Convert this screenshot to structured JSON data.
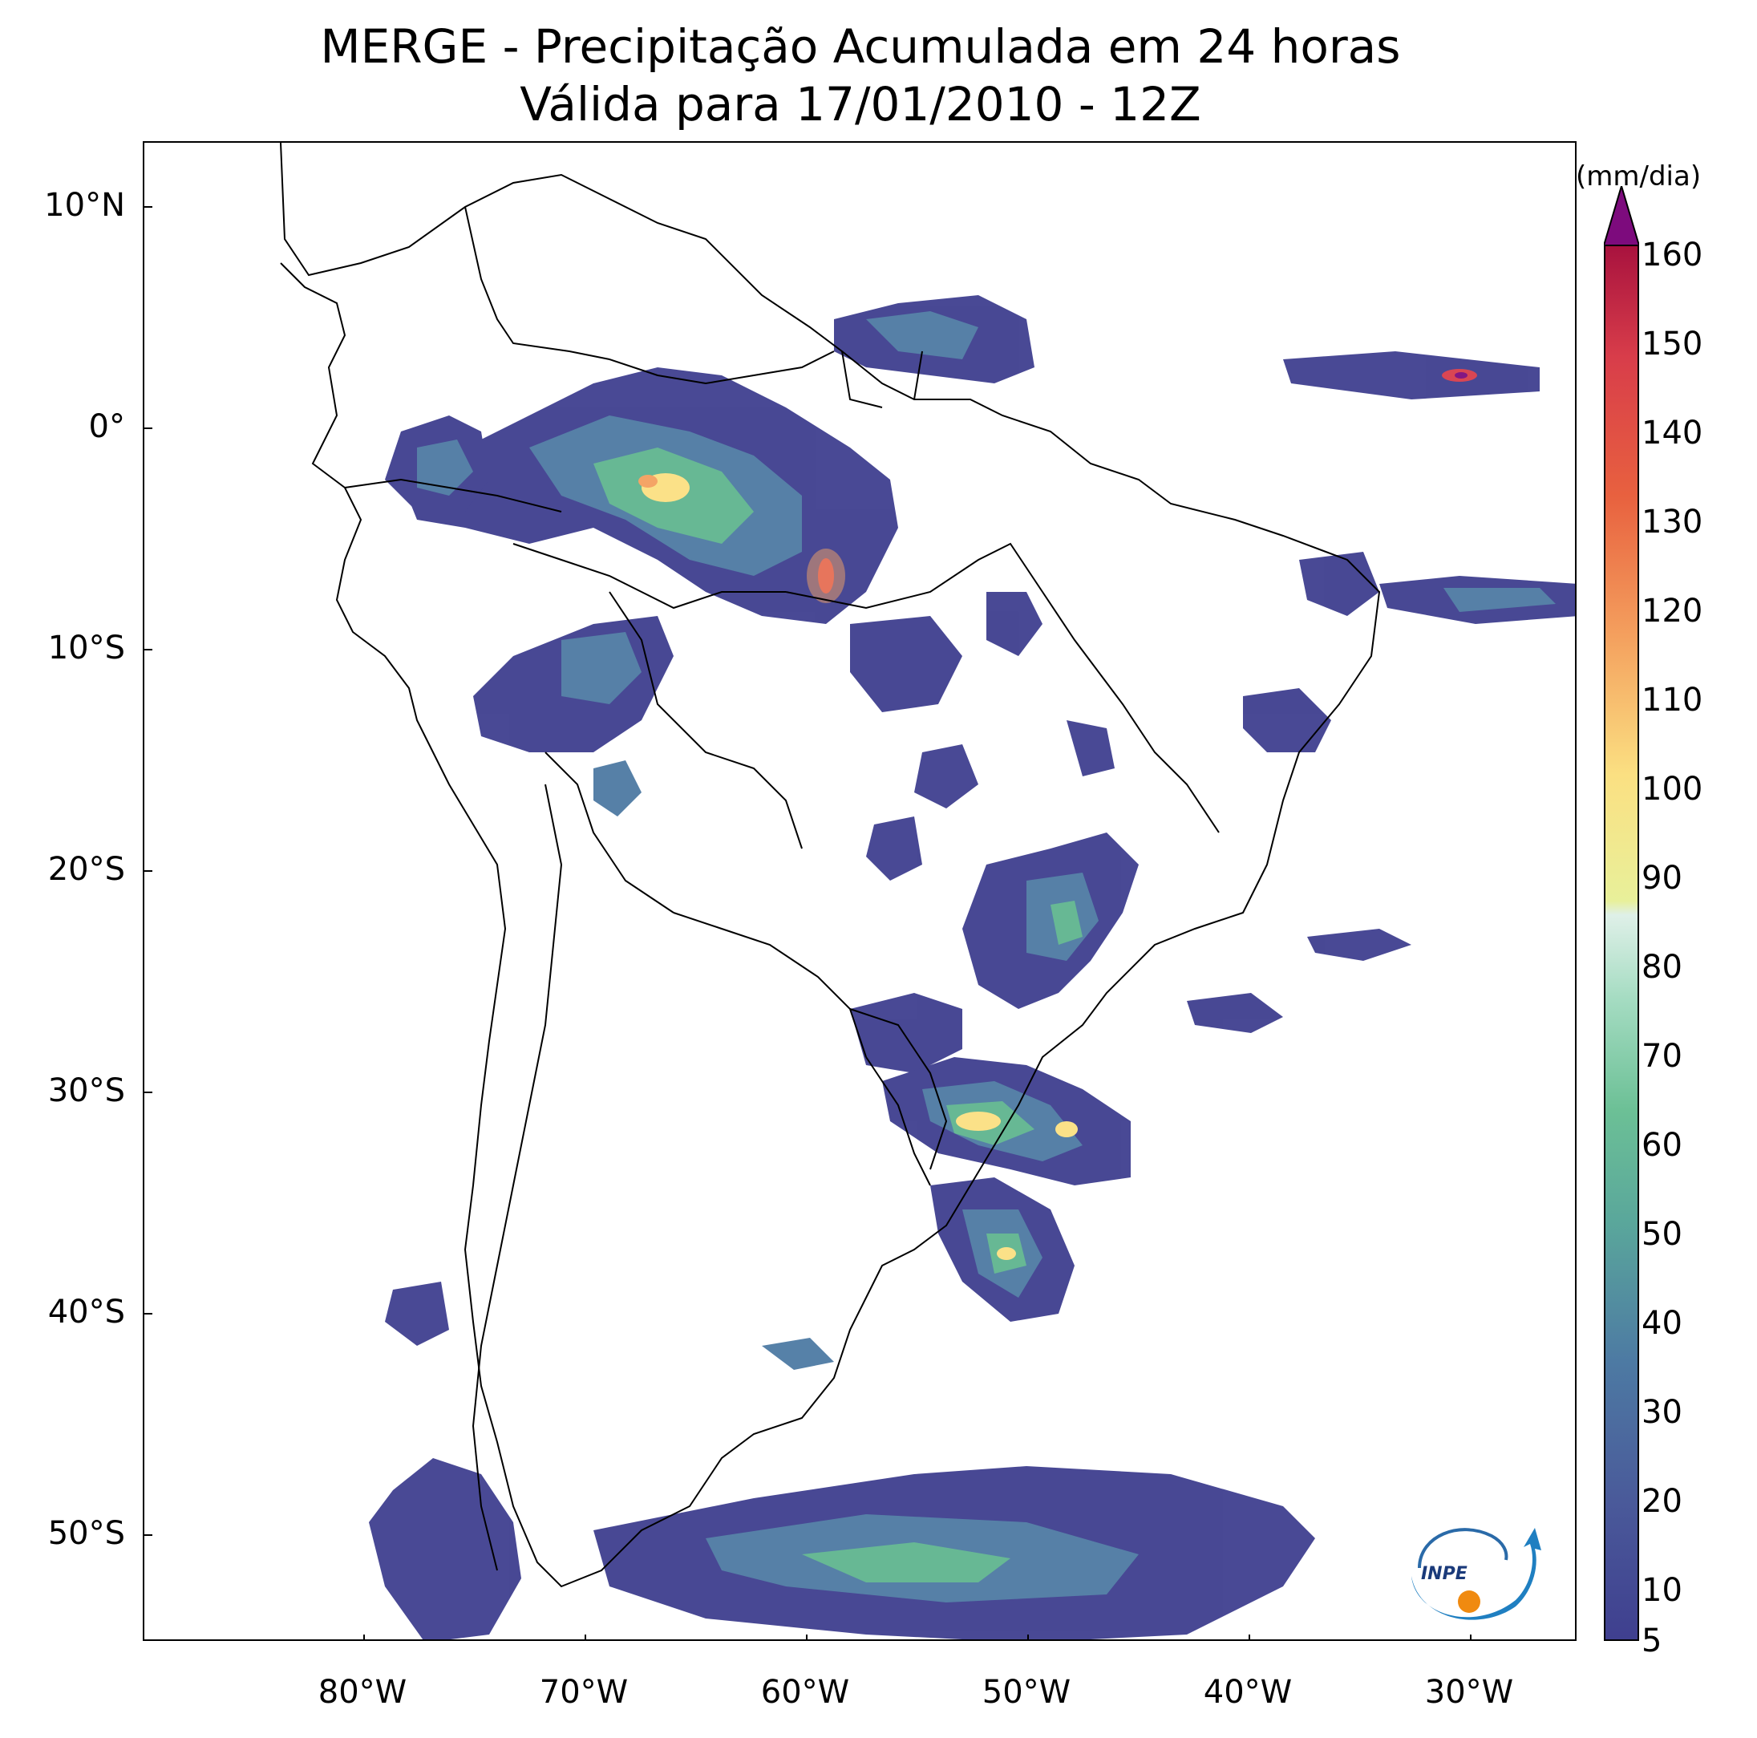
{
  "title_line1": "MERGE - Precipitação Acumulada em 24 horas",
  "title_line2": "Válida para 17/01/2010 - 12Z",
  "map": {
    "lat_labels": [
      "10°N",
      "0°",
      "10°S",
      "20°S",
      "30°S",
      "40°S",
      "50°S"
    ],
    "lon_labels": [
      "80°W",
      "70°W",
      "60°W",
      "50°W",
      "40°W",
      "30°W"
    ]
  },
  "colorbar": {
    "unit": "(mm/dia)",
    "ticks": [
      "5",
      "10",
      "20",
      "30",
      "40",
      "50",
      "60",
      "70",
      "80",
      "90",
      "100",
      "110",
      "120",
      "130",
      "140",
      "150",
      "160"
    ],
    "colors": {
      "low": "#3f3f8f",
      "mid": "#5fb58f",
      "light": "#dff0e8",
      "yellow": "#fbe082",
      "orange": "#f4a05e",
      "red": "#d83d4a",
      "extreme": "#7d0b7d"
    }
  },
  "logo": {
    "text": "INPE"
  }
}
